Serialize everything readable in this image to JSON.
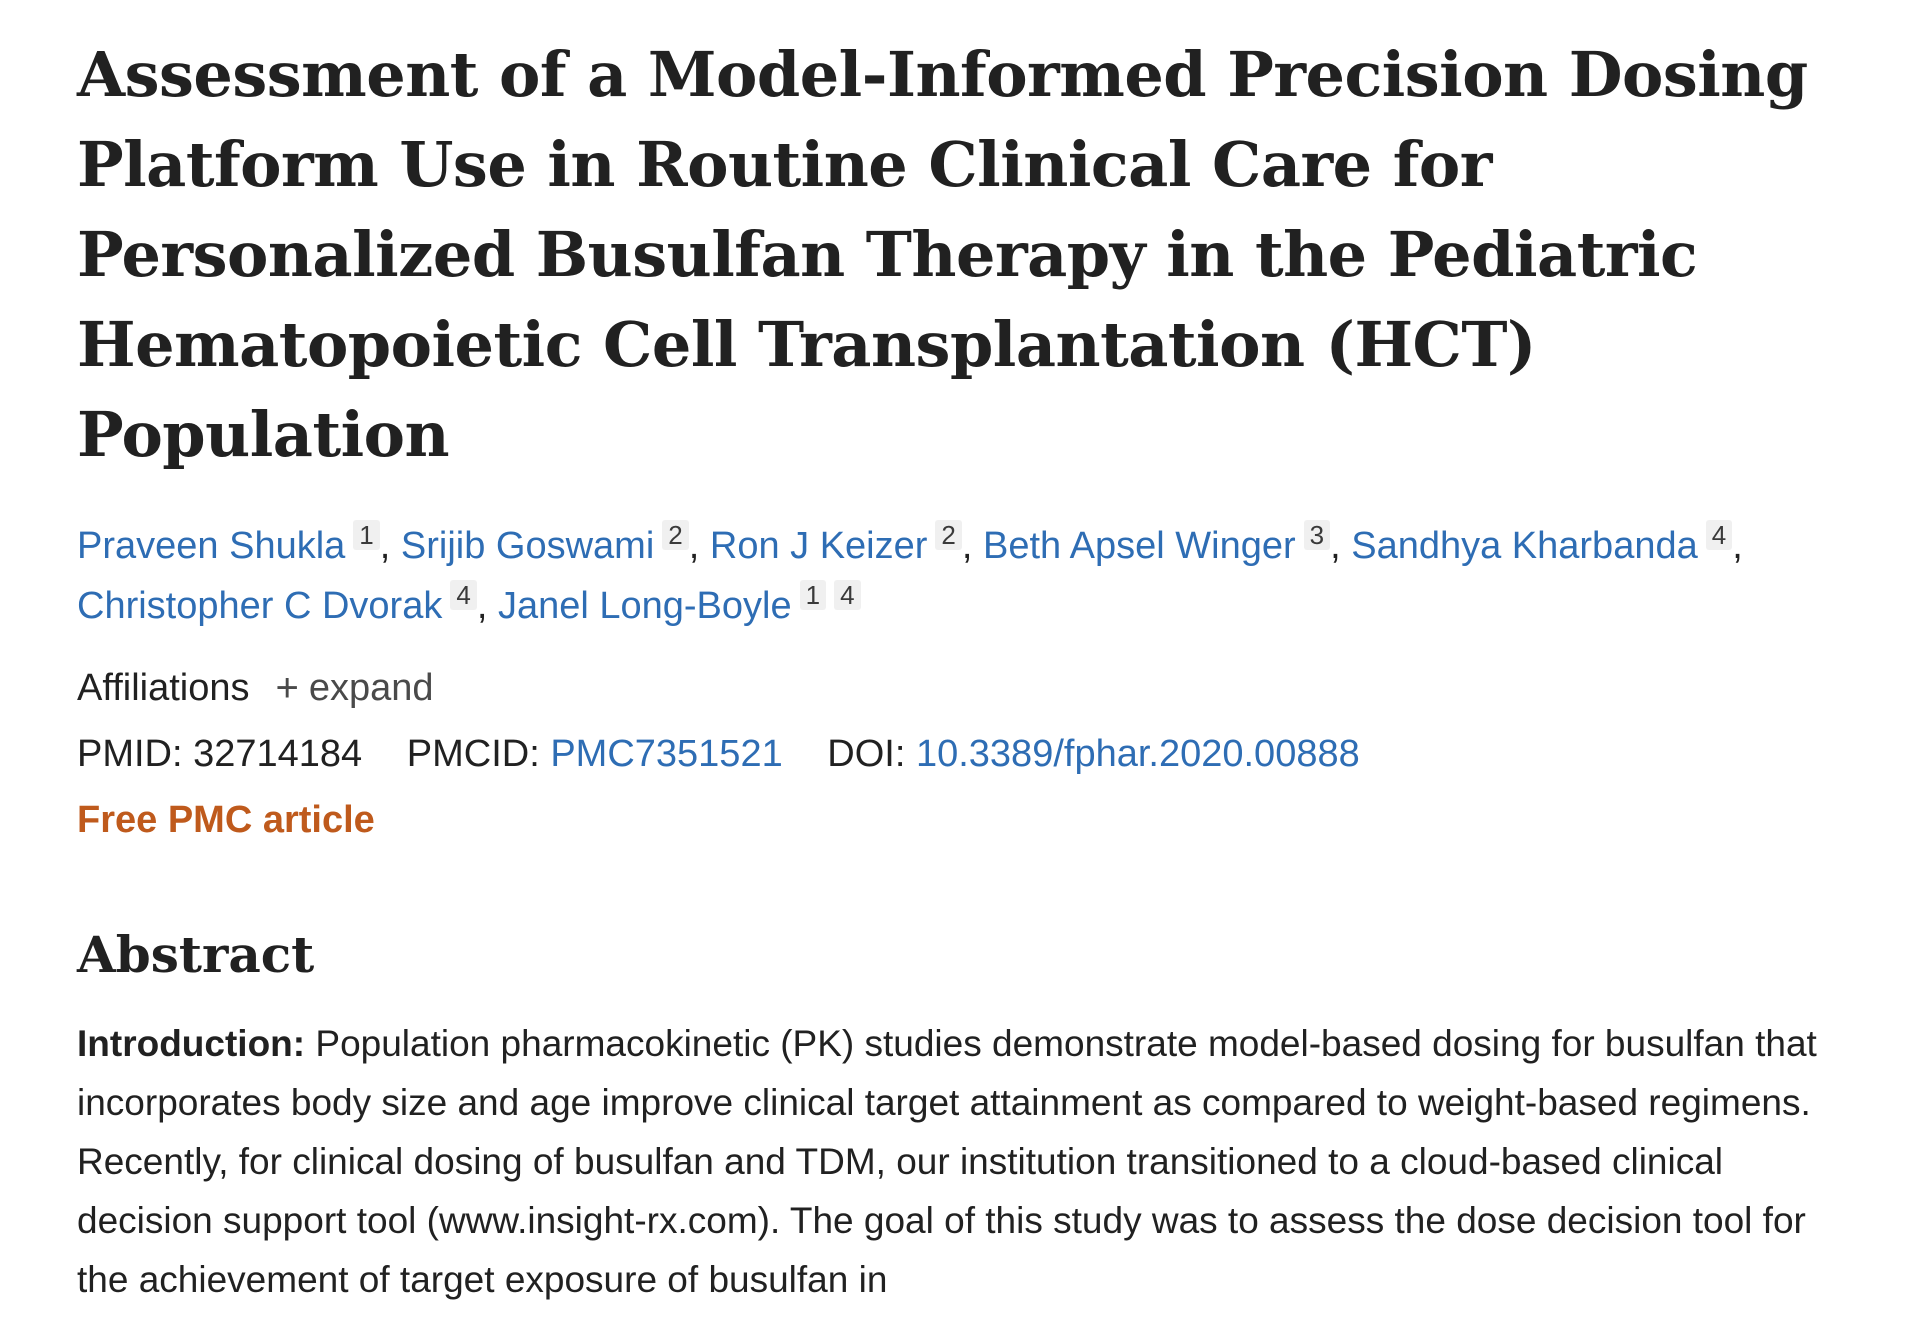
{
  "article": {
    "title": "Assessment of a Model-Informed Precision Dosing Platform Use in Routine Clinical Care for Personalized Busulfan Therapy in the Pediatric Hematopoietic Cell Transplantation (HCT) Population",
    "authors": [
      {
        "name": "Praveen Shukla",
        "affs": [
          "1"
        ]
      },
      {
        "name": "Srijib Goswami",
        "affs": [
          "2"
        ]
      },
      {
        "name": "Ron J Keizer",
        "affs": [
          "2"
        ]
      },
      {
        "name": "Beth Apsel Winger",
        "affs": [
          "3"
        ]
      },
      {
        "name": "Sandhya Kharbanda",
        "affs": [
          "4"
        ]
      },
      {
        "name": "Christopher C Dvorak",
        "affs": [
          "4"
        ]
      },
      {
        "name": "Janel Long-Boyle",
        "affs": [
          "1",
          "4"
        ]
      }
    ],
    "affiliations_label": "Affiliations",
    "expand_label": "expand",
    "pmid_label": "PMID:",
    "pmid": "32714184",
    "pmcid_label": "PMCID:",
    "pmcid": "PMC7351521",
    "doi_label": "DOI:",
    "doi": "10.3389/fphar.2020.00888",
    "free_pmc": "Free PMC article"
  },
  "abstract": {
    "heading": "Abstract",
    "intro_label": "Introduction:",
    "intro_text": " Population pharmacokinetic (PK) studies demonstrate model-based dosing for busulfan that incorporates body size and age improve clinical target attainment as compared to weight-based regimens. Recently, for clinical dosing of busulfan and TDM, our institution transitioned to a cloud-based clinical decision support tool (www.insight-rx.com). The goal of this study was to assess the dose decision tool for the achievement of target exposure of busulfan in"
  },
  "colors": {
    "link": "#2e6db4",
    "free_pmc": "#bf5a1c",
    "text": "#212121"
  },
  "icons": {
    "expand": "plus-icon"
  }
}
